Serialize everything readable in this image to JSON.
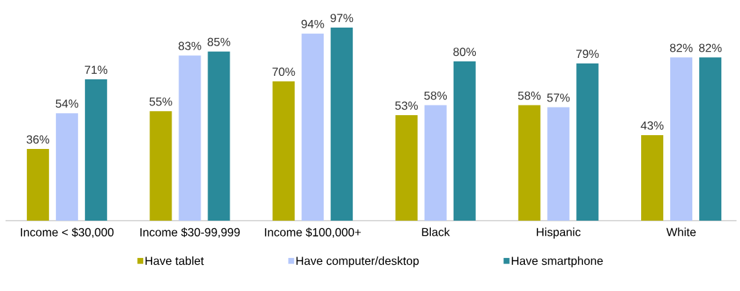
{
  "chart_data": {
    "type": "bar",
    "categories": [
      "Income < $30,000",
      "Income $30-99,999",
      "Income $100,000+",
      "Black",
      "Hispanic",
      "White"
    ],
    "series": [
      {
        "name": "Have tablet",
        "color": "#b5ad00",
        "values": [
          36,
          55,
          70,
          53,
          58,
          43
        ],
        "value_labels": [
          "36%",
          "55%",
          "70%",
          "53%",
          "58%",
          "43%"
        ]
      },
      {
        "name": "Have computer/desktop",
        "color": "#b4c7fb",
        "values": [
          54,
          83,
          94,
          58,
          57,
          82
        ],
        "value_labels": [
          "54%",
          "83%",
          "94%",
          "58%",
          "57%",
          "82%"
        ]
      },
      {
        "name": "Have smartphone",
        "color": "#2a8a9a",
        "values": [
          71,
          85,
          97,
          80,
          79,
          82
        ],
        "value_labels": [
          "71%",
          "85%",
          "97%",
          "80%",
          "79%",
          "82%"
        ]
      }
    ],
    "legend": "bottom"
  }
}
